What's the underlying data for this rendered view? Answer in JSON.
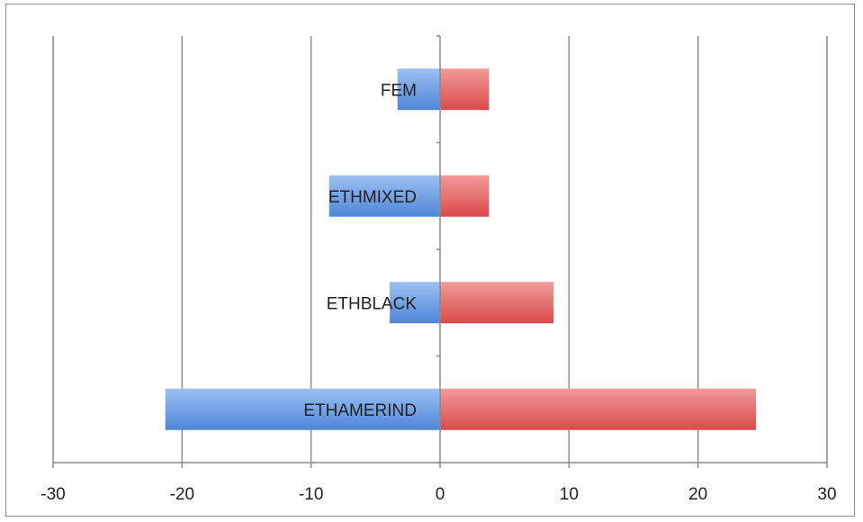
{
  "chart_data": {
    "type": "bar",
    "orientation": "horizontal",
    "title": "",
    "xlabel": "",
    "ylabel": "",
    "xlim": [
      -30,
      30
    ],
    "xticks": [
      -30,
      -20,
      -10,
      0,
      10,
      20,
      30
    ],
    "grid": "vertical",
    "legend": "none",
    "categories": [
      "FEM",
      "ETHMIXED",
      "ETHBLACK",
      "ETHAMERIND"
    ],
    "series": [
      {
        "color": "#5b93e0",
        "values": [
          -3.3,
          -8.6,
          -3.9,
          -21.3
        ]
      },
      {
        "color": "#e05656",
        "values": [
          3.8,
          3.8,
          8.8,
          24.5
        ]
      }
    ]
  }
}
